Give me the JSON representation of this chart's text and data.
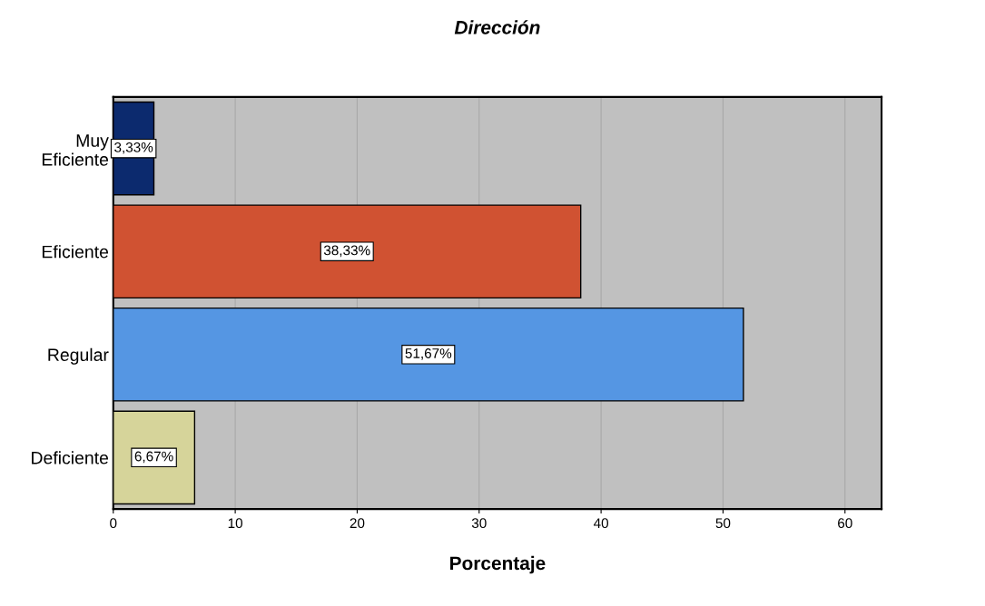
{
  "chart_data": {
    "type": "bar",
    "orientation": "horizontal",
    "title": "Dirección",
    "xlabel": "Porcentaje",
    "categories": [
      "Muy\nEficiente",
      "Eficiente",
      "Regular",
      "Deficiente"
    ],
    "values": [
      3.33,
      38.33,
      51.67,
      6.67
    ],
    "colors": [
      "#0c2a6e",
      "#d05232",
      "#5596e3",
      "#d6d49a"
    ],
    "value_labels": [
      "3,33%",
      "38,33%",
      "51,67%",
      "6,67%"
    ],
    "xlim": [
      0,
      63
    ],
    "xticks": [
      0,
      10,
      20,
      30,
      40,
      50,
      60
    ],
    "grid": "x"
  }
}
